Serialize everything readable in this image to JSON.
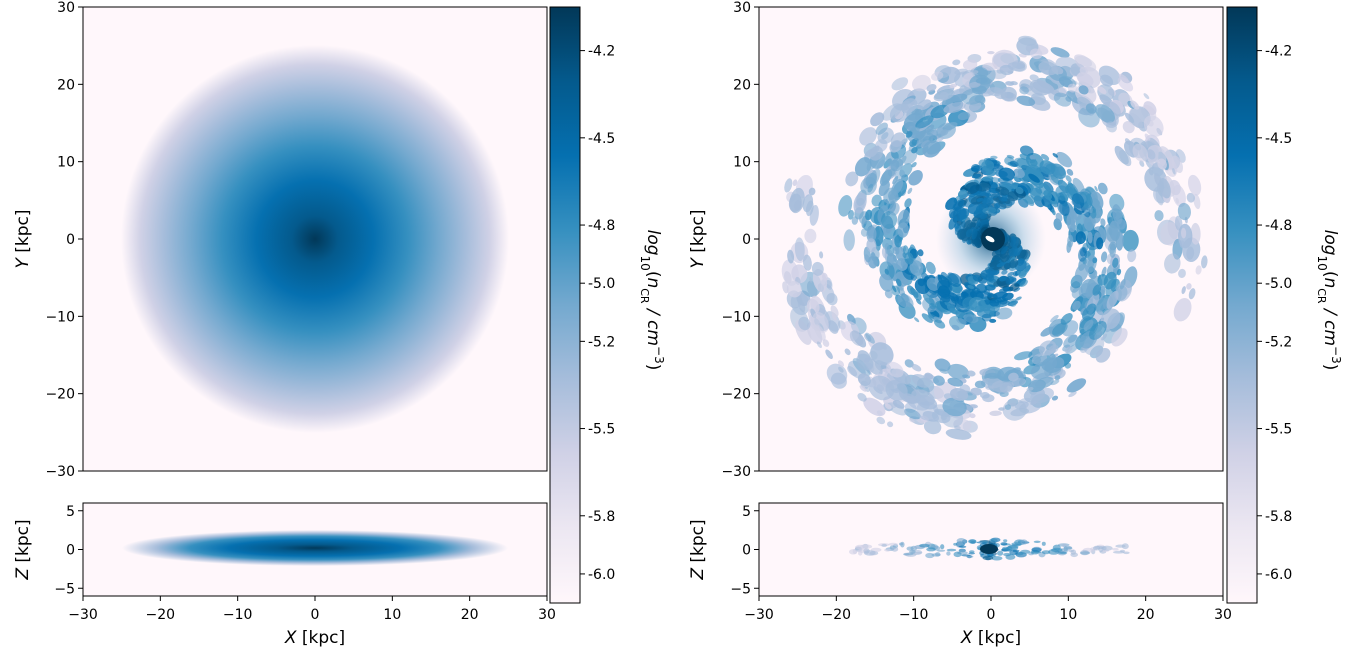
{
  "chart_data": [
    {
      "type": "heatmap",
      "panel": "left",
      "description_units": "log10 cosmic-ray number density",
      "colormap": [
        "#fff7fb",
        "#ece7f2",
        "#d0d1e6",
        "#a6bddb",
        "#74a9cf",
        "#3690c0",
        "#0570b0",
        "#045a8d",
        "#023858"
      ],
      "face_on": {
        "xlabel": "X [kpc]",
        "ylabel": "Y [kpc]",
        "xlim": [
          -30,
          30
        ],
        "ylim": [
          -30,
          30
        ],
        "yticks": [
          "−30",
          "−20",
          "−10",
          "0",
          "10",
          "20",
          "30"
        ],
        "morphology": "smooth",
        "radius_kpc": 25
      },
      "edge_on": {
        "xlabel": "X [kpc]",
        "ylabel": "Z [kpc]",
        "xlim": [
          -30,
          30
        ],
        "ylim": [
          -6,
          6
        ],
        "xticks": [
          "−30",
          "−20",
          "−10",
          "0",
          "10",
          "20",
          "30"
        ],
        "yticks": [
          "−5",
          "0",
          "5"
        ],
        "radius_kpc": 25
      },
      "colorbar": {
        "label": "log10(nCR / cm−3)",
        "label_parts": {
          "prefix": "log",
          "sub": "10",
          "open": "(",
          "n": "n",
          "nsub": "CR",
          "mid": " / cm",
          "sup": "−3",
          "close": ")"
        },
        "ticks": [
          "-4.2",
          "-4.5",
          "-4.8",
          "-5.0",
          "-5.2",
          "-5.5",
          "-5.8",
          "-6.0"
        ]
      }
    },
    {
      "type": "heatmap",
      "panel": "right",
      "description_units": "log10 cosmic-ray number density",
      "colormap": [
        "#fff7fb",
        "#ece7f2",
        "#d0d1e6",
        "#a6bddb",
        "#74a9cf",
        "#3690c0",
        "#0570b0",
        "#045a8d",
        "#023858"
      ],
      "face_on": {
        "xlabel": "X [kpc]",
        "ylabel": "Y [kpc]",
        "xlim": [
          -30,
          30
        ],
        "ylim": [
          -30,
          30
        ],
        "yticks": [
          "−30",
          "−20",
          "−10",
          "0",
          "10",
          "20",
          "30"
        ],
        "morphology": "spiral",
        "radius_kpc": 28
      },
      "edge_on": {
        "xlabel": "X [kpc]",
        "ylabel": "Z [kpc]",
        "xlim": [
          -30,
          30
        ],
        "ylim": [
          -6,
          6
        ],
        "xticks": [
          "−30",
          "−20",
          "−10",
          "0",
          "10",
          "20",
          "30"
        ],
        "yticks": [
          "−5",
          "0",
          "5"
        ],
        "radius_kpc": 18
      },
      "colorbar": {
        "label": "log10(nCR / cm−3)",
        "label_parts": {
          "prefix": "log",
          "sub": "10",
          "open": "(",
          "n": "n",
          "nsub": "CR",
          "mid": " / cm",
          "sup": "−3",
          "close": ")"
        },
        "ticks": [
          "-4.2",
          "-4.5",
          "-4.8",
          "-5.0",
          "-5.2",
          "-5.5",
          "-5.8",
          "-6.0"
        ]
      }
    }
  ]
}
